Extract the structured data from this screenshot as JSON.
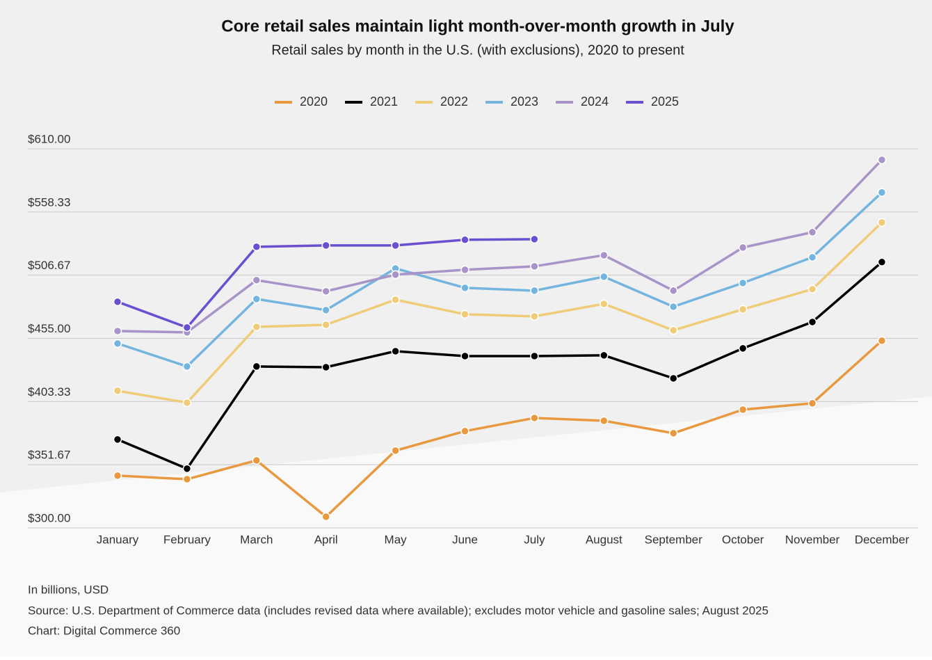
{
  "chart_data": {
    "type": "line",
    "title": "Core retail sales maintain light month-over-month growth in July",
    "subtitle": "Retail sales by month in the U.S. (with exclusions), 2020 to present",
    "categories": [
      "January",
      "February",
      "March",
      "April",
      "May",
      "June",
      "July",
      "August",
      "September",
      "October",
      "November",
      "December"
    ],
    "series": [
      {
        "name": "2020",
        "color": "#e8993f",
        "values": [
          342.7,
          339.8,
          355.2,
          309.1,
          363.2,
          379.1,
          389.9,
          387.6,
          377.4,
          396.7,
          401.9,
          453.1
        ]
      },
      {
        "name": "2021",
        "color": "#000000",
        "values": [
          372.3,
          348.4,
          432.0,
          431.4,
          444.5,
          440.5,
          440.5,
          441.1,
          422.3,
          446.8,
          468.4,
          517.4
        ]
      },
      {
        "name": "2022",
        "color": "#f0cc78",
        "values": [
          412.1,
          402.4,
          464.4,
          466.1,
          486.6,
          474.7,
          473.0,
          483.2,
          461.6,
          478.7,
          495.2,
          549.8
        ]
      },
      {
        "name": "2023",
        "color": "#74b5e0",
        "values": [
          450.8,
          432.0,
          487.2,
          478.1,
          512.2,
          496.3,
          494.0,
          505.4,
          480.9,
          500.3,
          521.3,
          574.3
        ]
      },
      {
        "name": "2024",
        "color": "#a894c8",
        "values": [
          461.0,
          459.9,
          502.6,
          493.5,
          507.1,
          511.1,
          513.9,
          523.0,
          494.0,
          529.3,
          541.8,
          601.0
        ]
      },
      {
        "name": "2025",
        "color": "#6a4fd0",
        "values": [
          484.9,
          463.9,
          529.9,
          531.0,
          531.0,
          535.6,
          536.1,
          null,
          null,
          null,
          null,
          null
        ]
      }
    ],
    "ylim": [
      300,
      610
    ],
    "yticks": [
      {
        "value": 300,
        "label": "$300.00"
      },
      {
        "value": 351.67,
        "label": "$351.67"
      },
      {
        "value": 403.33,
        "label": "$403.33"
      },
      {
        "value": 455,
        "label": "$455.00"
      },
      {
        "value": 506.67,
        "label": "$506.67"
      },
      {
        "value": 558.33,
        "label": "$558.33"
      },
      {
        "value": 610,
        "label": "$610.00"
      }
    ],
    "grid": true,
    "legend": "top",
    "notes": [
      "In billions, USD",
      "Source: U.S. Department of Commerce data (includes revised data where available); excludes motor vehicle and gasoline sales; August 2025",
      "Chart: Digital Commerce 360"
    ]
  }
}
